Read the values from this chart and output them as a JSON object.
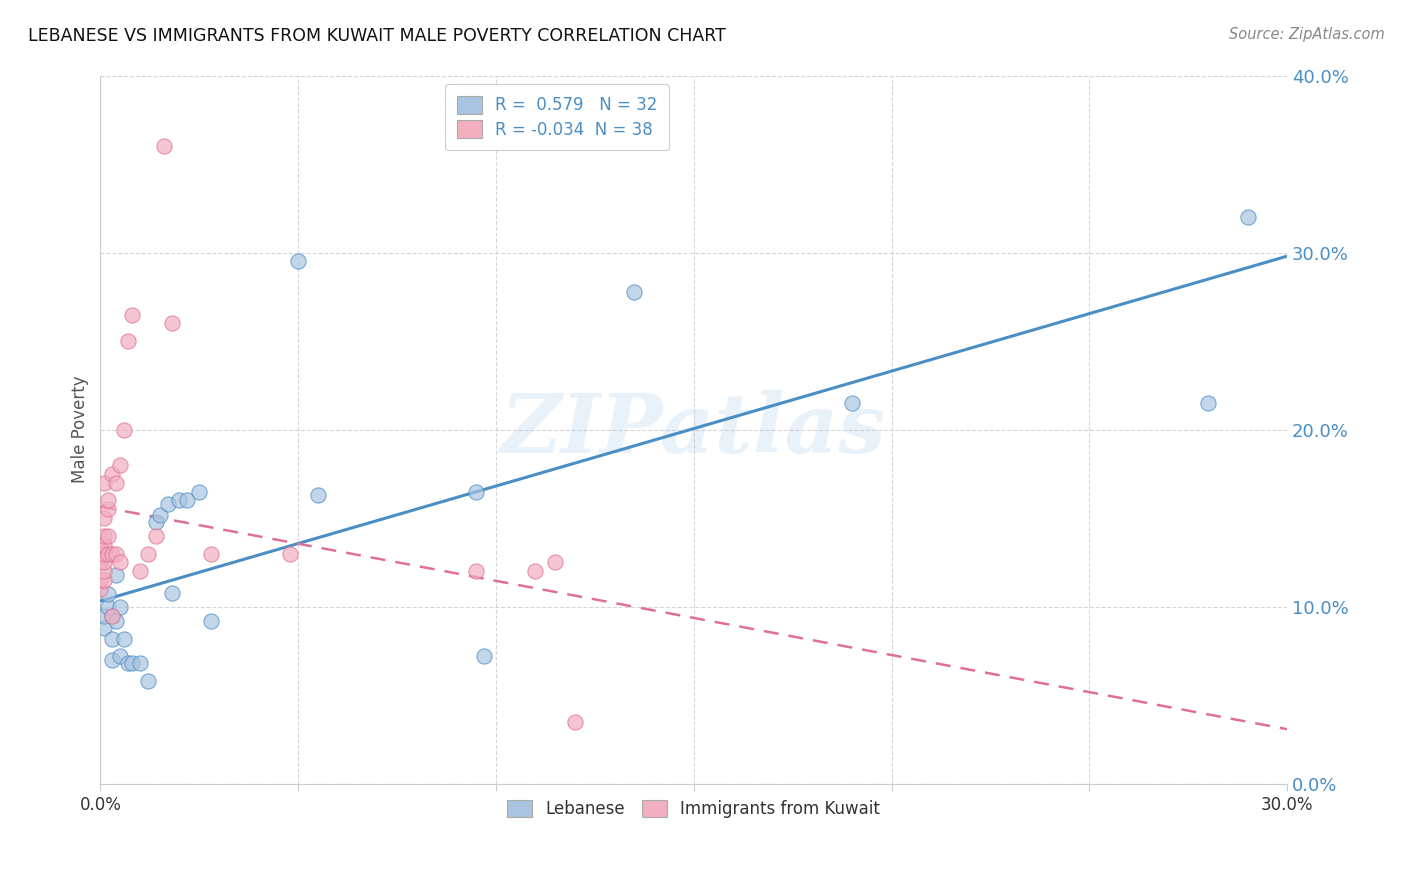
{
  "title": "LEBANESE VS IMMIGRANTS FROM KUWAIT MALE POVERTY CORRELATION CHART",
  "source": "Source: ZipAtlas.com",
  "ylabel_label": "Male Poverty",
  "legend_label1": "Lebanese",
  "legend_label2": "Immigrants from Kuwait",
  "R1": 0.579,
  "N1": 32,
  "R2": -0.034,
  "N2": 38,
  "color_blue": "#a8c4e0",
  "color_pink": "#f2afc0",
  "color_blue_line": "#4a8ec4",
  "color_pink_line": "#e07090",
  "watermark": "ZIPatlas",
  "xlim": [
    0.0,
    0.3
  ],
  "ylim": [
    0.0,
    0.4
  ],
  "lebanese_x": [
    0.001,
    0.001,
    0.002,
    0.002,
    0.003,
    0.003,
    0.003,
    0.004,
    0.004,
    0.005,
    0.005,
    0.006,
    0.007,
    0.008,
    0.01,
    0.012,
    0.014,
    0.015,
    0.017,
    0.018,
    0.02,
    0.022,
    0.025,
    0.028,
    0.05,
    0.055,
    0.095,
    0.097,
    0.135,
    0.19,
    0.28,
    0.29
  ],
  "lebanese_y": [
    0.088,
    0.095,
    0.1,
    0.107,
    0.082,
    0.07,
    0.095,
    0.092,
    0.118,
    0.1,
    0.072,
    0.082,
    0.068,
    0.068,
    0.068,
    0.058,
    0.148,
    0.152,
    0.158,
    0.108,
    0.16,
    0.16,
    0.165,
    0.092,
    0.295,
    0.163,
    0.165,
    0.072,
    0.278,
    0.215,
    0.215,
    0.32
  ],
  "kuwait_x": [
    0.0,
    0.0,
    0.0,
    0.0,
    0.0,
    0.001,
    0.001,
    0.001,
    0.001,
    0.001,
    0.001,
    0.001,
    0.001,
    0.002,
    0.002,
    0.002,
    0.002,
    0.003,
    0.003,
    0.003,
    0.004,
    0.004,
    0.005,
    0.005,
    0.006,
    0.007,
    0.008,
    0.01,
    0.012,
    0.014,
    0.016,
    0.018,
    0.028,
    0.048,
    0.095,
    0.11,
    0.115,
    0.12
  ],
  "kuwait_y": [
    0.11,
    0.115,
    0.125,
    0.13,
    0.135,
    0.115,
    0.12,
    0.125,
    0.13,
    0.135,
    0.14,
    0.15,
    0.17,
    0.13,
    0.14,
    0.155,
    0.16,
    0.095,
    0.13,
    0.175,
    0.13,
    0.17,
    0.125,
    0.18,
    0.2,
    0.25,
    0.265,
    0.12,
    0.13,
    0.14,
    0.36,
    0.26,
    0.13,
    0.13,
    0.12,
    0.12,
    0.125,
    0.035
  ]
}
